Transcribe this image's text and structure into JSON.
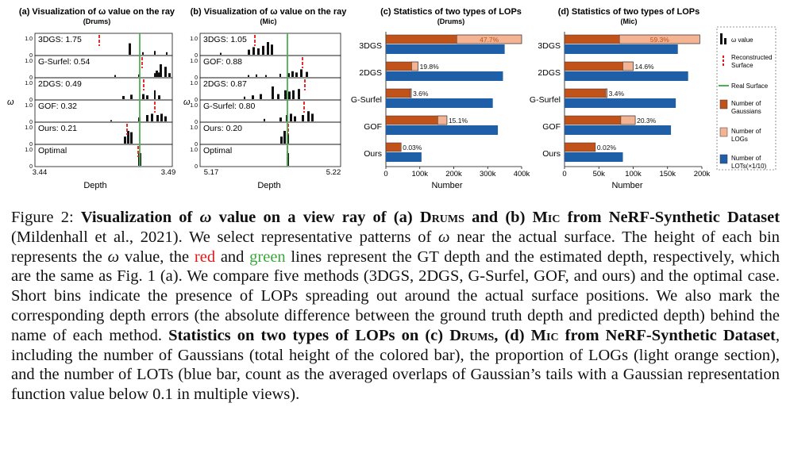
{
  "panels": {
    "a": {
      "title": "(a) Visualization of ω value on the ray",
      "subtitle": "(Drums)",
      "ylabel": "ω",
      "xlabel": "Depth",
      "x_min_label": "3.44",
      "x_max_label": "3.49",
      "rows": [
        {
          "label": "3DGS: 1.75",
          "ytop": "1.0",
          "ybot": "0"
        },
        {
          "label": "G-Surfel: 0.54",
          "ytop": "1.0",
          "ybot": "0"
        },
        {
          "label": "2DGS: 0.49",
          "ytop": "1.0",
          "ybot": "0"
        },
        {
          "label": "GOF: 0.32",
          "ytop": "1.0",
          "ybot": "0"
        },
        {
          "label": "Ours: 0.21",
          "ytop": "1.0",
          "ybot": "0"
        },
        {
          "label": "Optimal",
          "ytop": "1.0",
          "ybot": "0"
        }
      ]
    },
    "b": {
      "title": "(b) Visualization of ω value on the ray",
      "subtitle": "(Mic)",
      "ylabel": "ω",
      "xlabel": "Depth",
      "x_min_label": "5.17",
      "x_max_label": "5.22",
      "rows": [
        {
          "label": "3DGS: 1.05",
          "ytop": "1.0",
          "ybot": "0"
        },
        {
          "label": "GOF: 0.88",
          "ytop": "1.0",
          "ybot": "0"
        },
        {
          "label": "2DGS: 0.87",
          "ytop": "1.0",
          "ybot": "0"
        },
        {
          "label": "G-Surfel: 0.80",
          "ytop": "1.0",
          "ybot": "0"
        },
        {
          "label": "Ours: 0.20",
          "ytop": "1.0",
          "ybot": "0"
        },
        {
          "label": "Optimal",
          "ytop": "1.0",
          "ybot": "0"
        }
      ]
    }
  },
  "legend": {
    "omega": "ω value",
    "reconstructed": "Reconstructed Surface",
    "real": "Real Surface",
    "gaussians": "Number of Gaussians",
    "logs": "Number of LOGs",
    "lots": "Number of LOTs(×1/10)"
  },
  "chart_data": [
    {
      "type": "bar",
      "orientation": "horizontal",
      "stacked": true,
      "title": "(c) Statistics of two types of LOPs",
      "subtitle": "(Drums)",
      "xlabel": "Number",
      "xlim": [
        0,
        400000
      ],
      "ticks": [
        "0",
        "100k",
        "200k",
        "300k",
        "400k"
      ],
      "categories": [
        "3DGS",
        "2DGS",
        "G-Surfel",
        "GOF",
        "Ours"
      ],
      "gaussians": [
        400000,
        95000,
        75000,
        180000,
        45000
      ],
      "logs": [
        191000,
        19000,
        3000,
        27000,
        0
      ],
      "lots": [
        350000,
        345000,
        315000,
        330000,
        105000
      ],
      "log_pct_labels": [
        "47.7%",
        "19.8%",
        "3.6%",
        "15.1%",
        "0.03%"
      ]
    },
    {
      "type": "bar",
      "orientation": "horizontal",
      "stacked": true,
      "title": "(d) Statistics of two types of LOPs",
      "subtitle": "(Mic)",
      "xlabel": "Number",
      "xlim": [
        0,
        200000
      ],
      "ticks": [
        "0",
        "50k",
        "100k",
        "150k",
        "200k"
      ],
      "categories": [
        "3DGS",
        "2DGS",
        "G-Surfel",
        "GOF",
        "Ours"
      ],
      "gaussians": [
        197000,
        100000,
        62000,
        103000,
        45000
      ],
      "logs": [
        117000,
        15000,
        2000,
        21000,
        0
      ],
      "lots": [
        165000,
        180000,
        162000,
        155000,
        85000
      ],
      "log_pct_labels": [
        "59.3%",
        "14.6%",
        "3.4%",
        "20.3%",
        "0.02%"
      ]
    }
  ],
  "caption": {
    "lead": "Figure 2: ",
    "b1": "Visualization of ",
    "omega": "ω",
    "b2": " value on a view ray of (a) ",
    "drums": "Drums",
    "b3": " and (b) ",
    "mic": "Mic",
    "b4": " from NeRF-Synthetic Dataset",
    "t1": " (Mildenhall et al., 2021). We select representative patterns of ",
    "t2": " near the actual surface. The height of each bin represents the ",
    "t3": " value, the ",
    "red": "red",
    "t4": " and ",
    "green": "green",
    "t5": " lines represent the GT depth and the estimated depth, respectively, which are the same as Fig. 1 (a). We compare five methods (3DGS, 2DGS, G-Surfel, GOF, and ours) and the optimal case. Short bins indicate the presence of LOPs spreading out around the actual surface positions. We also mark the corresponding depth errors (the absolute difference between the ground truth depth and predicted depth) behind the name of each method. ",
    "b5": "Statistics on two types of LOPs on (c) ",
    "b6": ", (d) ",
    "b7": " from NeRF-Synthetic Dataset",
    "t6": ", including the number of Gaussians (total height of the colored bar), the proportion of LOGs (light orange section), and the number of LOTs (blue bar, count as the averaged overlaps of Gaussian’s tails with a Gaussian representation function value below 0.1 in multiple views)."
  }
}
